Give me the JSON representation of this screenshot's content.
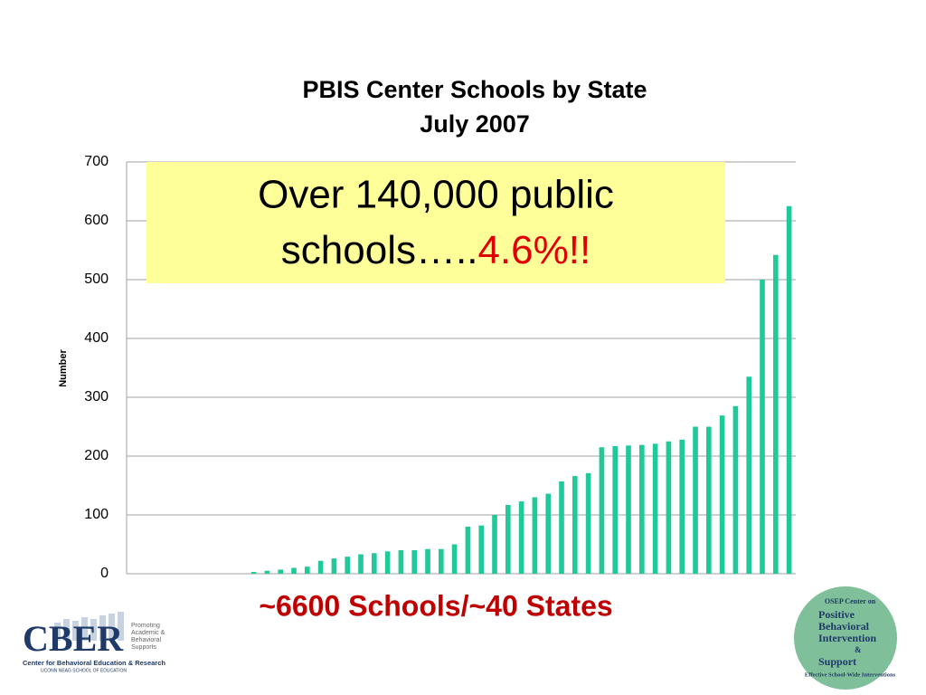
{
  "chart_data": {
    "type": "bar",
    "title": "PBIS Center Schools by State",
    "subtitle": "July 2007",
    "y_label": "Number",
    "categories": [
      null,
      null,
      null,
      null,
      null,
      null,
      null,
      null,
      null,
      null,
      null,
      null,
      null,
      null,
      null,
      null,
      null,
      null,
      null,
      null,
      null,
      null,
      null,
      null,
      null,
      null,
      null,
      null,
      null,
      null,
      null,
      null,
      null,
      null,
      null,
      null,
      null,
      null,
      null,
      null,
      null,
      null,
      null,
      null,
      null,
      null,
      null,
      null,
      null,
      null
    ],
    "values": [
      0,
      0,
      0,
      0,
      0,
      0,
      0,
      0,
      0,
      3,
      5,
      7,
      10,
      12,
      22,
      26,
      29,
      33,
      35,
      38,
      40,
      40,
      42,
      42,
      50,
      80,
      82,
      100,
      117,
      123,
      130,
      136,
      157,
      166,
      171,
      215,
      217,
      218,
      219,
      221,
      225,
      228,
      250,
      250,
      269,
      285,
      335,
      500,
      542,
      625
    ],
    "color": "#1fc99a",
    "ylim": [
      0,
      700
    ],
    "yticks": [
      0,
      100,
      200,
      300,
      400,
      500,
      600,
      700
    ],
    "grid": true,
    "callout": {
      "line1": "Over 140,000 public",
      "line2": "schools…..",
      "highlight": "4.6%!!"
    },
    "footer": "~6600 Schools/~40 States"
  },
  "logos": {
    "cber": {
      "name": "CBER",
      "tagline": "Promoting Academic & Behavioral Supports",
      "full": "Center for Behavioral Education & Research",
      "school": "UCONN NEAG SCHOOL OF EDUCATION"
    },
    "pbis": {
      "top": "OSEP Center on",
      "words": [
        "Positive",
        "Behavioral",
        "Intervention",
        "&",
        "Support"
      ],
      "bottom": "Effective School-Wide Interventions"
    }
  }
}
